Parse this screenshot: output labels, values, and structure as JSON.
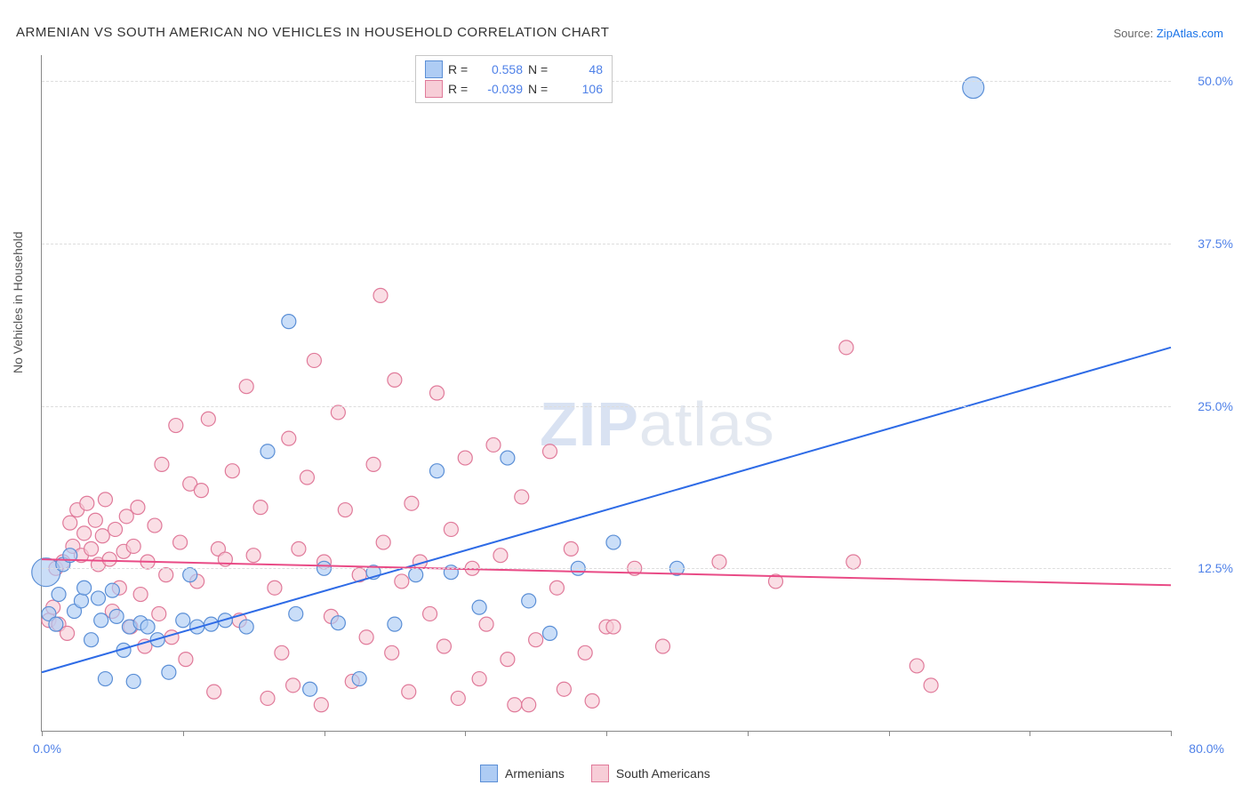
{
  "title": "ARMENIAN VS SOUTH AMERICAN NO VEHICLES IN HOUSEHOLD CORRELATION CHART",
  "source_prefix": "Source: ",
  "source_name": "ZipAtlas.com",
  "ylabel": "No Vehicles in Household",
  "watermark_a": "ZIP",
  "watermark_b": "atlas",
  "chart": {
    "type": "scatter",
    "xlim": [
      0,
      80
    ],
    "ylim": [
      0,
      52
    ],
    "xticks": [
      0,
      10,
      20,
      30,
      40,
      50,
      60,
      70,
      80
    ],
    "xlabel_min": "0.0%",
    "xlabel_max": "80.0%",
    "yticks": [
      12.5,
      25.0,
      37.5,
      50.0
    ],
    "ytick_labels": [
      "12.5%",
      "25.0%",
      "37.5%",
      "50.0%"
    ],
    "grid_color": "#dddddd",
    "axis_color": "#888888",
    "background_color": "#ffffff",
    "marker_radius": 8,
    "marker_stroke_width": 1.2,
    "series": [
      {
        "name": "Armenians",
        "fill": "#aeccf4",
        "stroke": "#5b8fd6",
        "r_label": "R =",
        "r_value": "0.558",
        "n_label": "N =",
        "n_value": "48",
        "trend": {
          "x1": 0,
          "y1": 4.5,
          "x2": 80,
          "y2": 29.5,
          "color": "#2e6be6",
          "width": 2
        },
        "points": [
          [
            0.3,
            12.2,
            16
          ],
          [
            0.5,
            9.0,
            8
          ],
          [
            1.0,
            8.2,
            8
          ],
          [
            1.2,
            10.5,
            8
          ],
          [
            1.5,
            12.8,
            8
          ],
          [
            2.0,
            13.5,
            8
          ],
          [
            2.3,
            9.2,
            8
          ],
          [
            2.8,
            10.0,
            8
          ],
          [
            3.0,
            11.0,
            8
          ],
          [
            3.5,
            7.0,
            8
          ],
          [
            4.0,
            10.2,
            8
          ],
          [
            4.2,
            8.5,
            8
          ],
          [
            4.5,
            4.0,
            8
          ],
          [
            5.0,
            10.8,
            8
          ],
          [
            5.3,
            8.8,
            8
          ],
          [
            5.8,
            6.2,
            8
          ],
          [
            6.2,
            8.0,
            8
          ],
          [
            6.5,
            3.8,
            8
          ],
          [
            7.0,
            8.3,
            8
          ],
          [
            7.5,
            8.0,
            8
          ],
          [
            8.2,
            7.0,
            8
          ],
          [
            9.0,
            4.5,
            8
          ],
          [
            10.0,
            8.5,
            8
          ],
          [
            10.5,
            12.0,
            8
          ],
          [
            11.0,
            8.0,
            8
          ],
          [
            12.0,
            8.2,
            8
          ],
          [
            13.0,
            8.5,
            8
          ],
          [
            14.5,
            8.0,
            8
          ],
          [
            16.0,
            21.5,
            8
          ],
          [
            17.5,
            31.5,
            8
          ],
          [
            18.0,
            9.0,
            8
          ],
          [
            19.0,
            3.2,
            8
          ],
          [
            20.0,
            12.5,
            8
          ],
          [
            21.0,
            8.3,
            8
          ],
          [
            22.5,
            4.0,
            8
          ],
          [
            23.5,
            12.2,
            8
          ],
          [
            25.0,
            8.2,
            8
          ],
          [
            26.5,
            12.0,
            8
          ],
          [
            28.0,
            20.0,
            8
          ],
          [
            29.0,
            12.2,
            8
          ],
          [
            31.0,
            9.5,
            8
          ],
          [
            33.0,
            21.0,
            8
          ],
          [
            34.5,
            10.0,
            8
          ],
          [
            36.0,
            7.5,
            8
          ],
          [
            38.0,
            12.5,
            8
          ],
          [
            40.5,
            14.5,
            8
          ],
          [
            45.0,
            12.5,
            8
          ],
          [
            66.0,
            49.5,
            12
          ]
        ]
      },
      {
        "name": "South Americans",
        "fill": "#f7cdd7",
        "stroke": "#e07a9a",
        "r_label": "R =",
        "r_value": "-0.039",
        "n_label": "N =",
        "n_value": "106",
        "trend": {
          "x1": 0,
          "y1": 13.2,
          "x2": 80,
          "y2": 11.2,
          "color": "#e94b86",
          "width": 2
        },
        "points": [
          [
            0.5,
            8.5,
            8
          ],
          [
            0.8,
            9.5,
            8
          ],
          [
            1.0,
            12.5,
            8
          ],
          [
            1.2,
            8.2,
            8
          ],
          [
            1.5,
            13.0,
            8
          ],
          [
            1.8,
            7.5,
            8
          ],
          [
            2.0,
            16.0,
            8
          ],
          [
            2.2,
            14.2,
            8
          ],
          [
            2.5,
            17.0,
            8
          ],
          [
            2.8,
            13.5,
            8
          ],
          [
            3.0,
            15.2,
            8
          ],
          [
            3.2,
            17.5,
            8
          ],
          [
            3.5,
            14.0,
            8
          ],
          [
            3.8,
            16.2,
            8
          ],
          [
            4.0,
            12.8,
            8
          ],
          [
            4.3,
            15.0,
            8
          ],
          [
            4.5,
            17.8,
            8
          ],
          [
            4.8,
            13.2,
            8
          ],
          [
            5.0,
            9.2,
            8
          ],
          [
            5.2,
            15.5,
            8
          ],
          [
            5.5,
            11.0,
            8
          ],
          [
            5.8,
            13.8,
            8
          ],
          [
            6.0,
            16.5,
            8
          ],
          [
            6.3,
            8.0,
            8
          ],
          [
            6.5,
            14.2,
            8
          ],
          [
            6.8,
            17.2,
            8
          ],
          [
            7.0,
            10.5,
            8
          ],
          [
            7.3,
            6.5,
            8
          ],
          [
            7.5,
            13.0,
            8
          ],
          [
            8.0,
            15.8,
            8
          ],
          [
            8.3,
            9.0,
            8
          ],
          [
            8.5,
            20.5,
            8
          ],
          [
            8.8,
            12.0,
            8
          ],
          [
            9.2,
            7.2,
            8
          ],
          [
            9.5,
            23.5,
            8
          ],
          [
            9.8,
            14.5,
            8
          ],
          [
            10.2,
            5.5,
            8
          ],
          [
            10.5,
            19.0,
            8
          ],
          [
            11.0,
            11.5,
            8
          ],
          [
            11.3,
            18.5,
            8
          ],
          [
            11.8,
            24.0,
            8
          ],
          [
            12.2,
            3.0,
            8
          ],
          [
            12.5,
            14.0,
            8
          ],
          [
            13.0,
            13.2,
            8
          ],
          [
            13.5,
            20.0,
            8
          ],
          [
            14.0,
            8.5,
            8
          ],
          [
            14.5,
            26.5,
            8
          ],
          [
            15.0,
            13.5,
            8
          ],
          [
            15.5,
            17.2,
            8
          ],
          [
            16.0,
            2.5,
            8
          ],
          [
            16.5,
            11.0,
            8
          ],
          [
            17.0,
            6.0,
            8
          ],
          [
            17.5,
            22.5,
            8
          ],
          [
            17.8,
            3.5,
            8
          ],
          [
            18.2,
            14.0,
            8
          ],
          [
            18.8,
            19.5,
            8
          ],
          [
            19.3,
            28.5,
            8
          ],
          [
            19.8,
            2.0,
            8
          ],
          [
            20.0,
            13.0,
            8
          ],
          [
            20.5,
            8.8,
            8
          ],
          [
            21.0,
            24.5,
            8
          ],
          [
            21.5,
            17.0,
            8
          ],
          [
            22.0,
            3.8,
            8
          ],
          [
            22.5,
            12.0,
            8
          ],
          [
            23.0,
            7.2,
            8
          ],
          [
            23.5,
            20.5,
            8
          ],
          [
            24.0,
            33.5,
            8
          ],
          [
            24.2,
            14.5,
            8
          ],
          [
            24.8,
            6.0,
            8
          ],
          [
            25.0,
            27.0,
            8
          ],
          [
            25.5,
            11.5,
            8
          ],
          [
            26.0,
            3.0,
            8
          ],
          [
            26.2,
            17.5,
            8
          ],
          [
            26.8,
            13.0,
            8
          ],
          [
            27.5,
            9.0,
            8
          ],
          [
            28.0,
            26.0,
            8
          ],
          [
            28.5,
            6.5,
            8
          ],
          [
            29.0,
            15.5,
            8
          ],
          [
            29.5,
            2.5,
            8
          ],
          [
            30.0,
            21.0,
            8
          ],
          [
            30.5,
            12.5,
            8
          ],
          [
            31.0,
            4.0,
            8
          ],
          [
            31.5,
            8.2,
            8
          ],
          [
            32.0,
            22.0,
            8
          ],
          [
            32.5,
            13.5,
            8
          ],
          [
            33.0,
            5.5,
            8
          ],
          [
            33.5,
            2.0,
            8
          ],
          [
            34.0,
            18.0,
            8
          ],
          [
            34.5,
            2.0,
            8
          ],
          [
            35.0,
            7.0,
            8
          ],
          [
            36.0,
            21.5,
            8
          ],
          [
            36.5,
            11.0,
            8
          ],
          [
            37.0,
            3.2,
            8
          ],
          [
            37.5,
            14.0,
            8
          ],
          [
            38.5,
            6.0,
            8
          ],
          [
            39.0,
            2.3,
            8
          ],
          [
            40.0,
            8.0,
            8
          ],
          [
            40.5,
            8.0,
            8
          ],
          [
            42.0,
            12.5,
            8
          ],
          [
            44.0,
            6.5,
            8
          ],
          [
            48.0,
            13.0,
            8
          ],
          [
            52.0,
            11.5,
            8
          ],
          [
            57.0,
            29.5,
            8
          ],
          [
            57.5,
            13.0,
            8
          ],
          [
            62.0,
            5.0,
            8
          ],
          [
            63.0,
            3.5,
            8
          ]
        ]
      }
    ]
  },
  "legend_bottom": [
    {
      "label": "Armenians",
      "fill": "#aeccf4",
      "stroke": "#5b8fd6"
    },
    {
      "label": "South Americans",
      "fill": "#f7cdd7",
      "stroke": "#e07a9a"
    }
  ]
}
